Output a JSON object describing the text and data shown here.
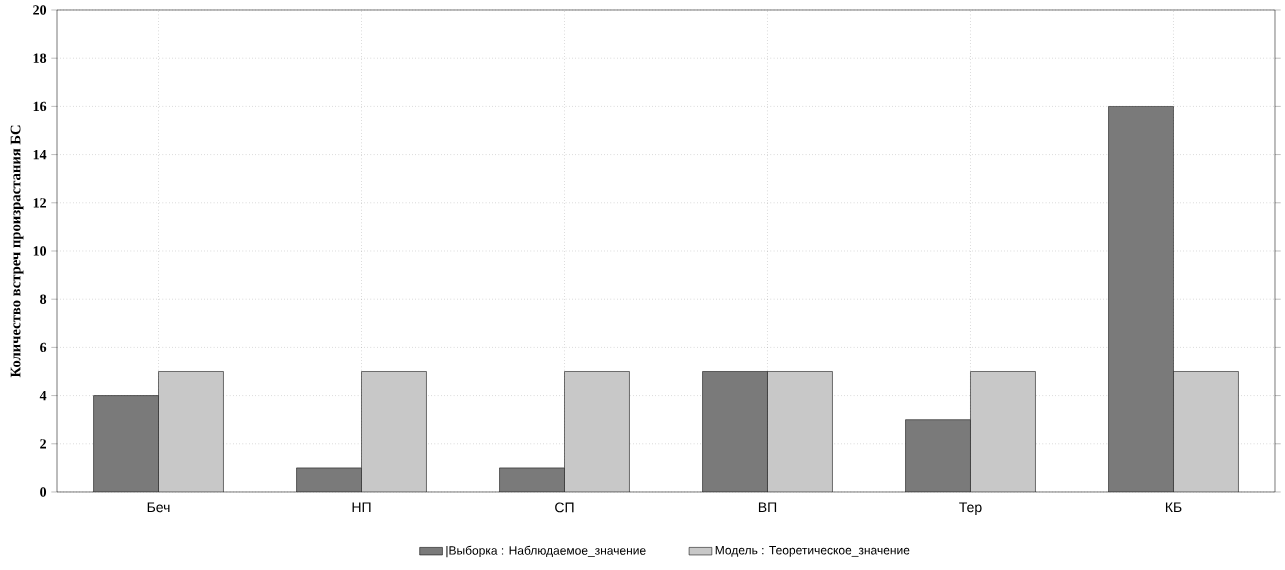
{
  "chart_data": {
    "type": "bar",
    "ylabel": "Количество встреч произрастания БС",
    "categories": [
      "Беч",
      "НП",
      "СП",
      "ВП",
      "Тер",
      "КБ"
    ],
    "series": [
      {
        "name": "|Выборка : Наблюдаемое_значение",
        "color": "#7a7a7a",
        "values": [
          4,
          1,
          1,
          5,
          3,
          16
        ]
      },
      {
        "name": "Модель : Теоретическое_значение",
        "color": "#c8c8c8",
        "values": [
          5,
          5,
          5,
          5,
          5,
          5
        ]
      }
    ],
    "ylim": [
      0,
      20
    ],
    "yticks": [
      0,
      2,
      4,
      6,
      8,
      10,
      12,
      14,
      16,
      18,
      20
    ],
    "grid": true,
    "legend": "bottom"
  }
}
